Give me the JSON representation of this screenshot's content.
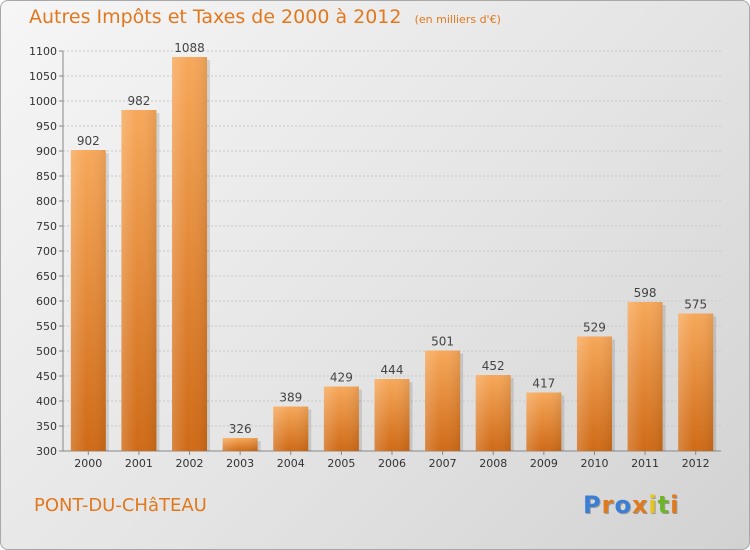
{
  "header": {
    "title": "Autres Impôts et Taxes de 2000 à 2012",
    "unit": "(en milliers d'€)"
  },
  "footer": {
    "place": "PONT-DU-CHâTEAU",
    "logo": "Proxiti",
    "logo_colors": [
      "#3a7fd5",
      "#e07a1e",
      "#3a7fd5",
      "#e07a1e",
      "#e6c51e",
      "#6fb52b",
      "#e07a1e"
    ]
  },
  "colors": {
    "title": "#e2781e",
    "bar_light": "#f7a85a",
    "bar_dark": "#cf6a16"
  },
  "chart_data": {
    "type": "bar",
    "title": "Autres Impôts et Taxes de 2000 à 2012",
    "subtitle": "(en milliers d'€)",
    "categories": [
      "2000",
      "2001",
      "2002",
      "2003",
      "2004",
      "2005",
      "2006",
      "2007",
      "2008",
      "2009",
      "2010",
      "2011",
      "2012"
    ],
    "values": [
      902,
      982,
      1088,
      326,
      389,
      429,
      444,
      501,
      452,
      417,
      529,
      598,
      575
    ],
    "data_labels": [
      "902",
      "982",
      "1088",
      "326",
      "389",
      "429",
      "444",
      "501",
      "452",
      "417",
      "529",
      "598",
      "575"
    ],
    "y_ticks": [
      "300",
      "350",
      "400",
      "450",
      "500",
      "550",
      "600",
      "650",
      "700",
      "750",
      "800",
      "850",
      "900",
      "950",
      "1000",
      "1050",
      "1100"
    ],
    "ylim": [
      300,
      1100
    ],
    "xlabel": "",
    "ylabel": "",
    "grid": true
  }
}
